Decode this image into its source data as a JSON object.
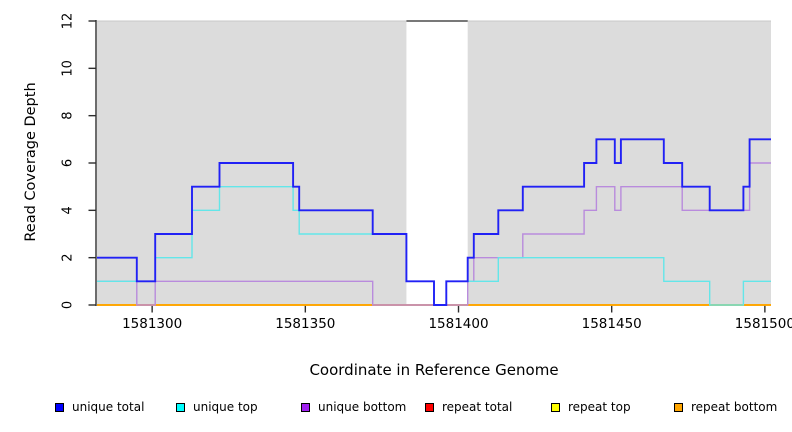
{
  "chart_data": {
    "type": "line",
    "subtype": "step-coverage",
    "title": "",
    "xlabel": "Coordinate in Reference Genome",
    "ylabel": "Read Coverage Depth",
    "xlim": [
      1581282,
      1581502
    ],
    "ylim": [
      0,
      12
    ],
    "x_ticks": [
      1581300,
      1581350,
      1581400,
      1581450,
      1581500
    ],
    "y_ticks": [
      0,
      2,
      4,
      6,
      8,
      10,
      12
    ],
    "grid": "off",
    "legend_position": "bottom",
    "colors": {
      "plot_bg": "#dcdcdc",
      "axis": "#2e2e2e",
      "plot_bg_top_edge": "#c8c8c8"
    },
    "highlight_band": {
      "x0": 1581383,
      "x1": 1581403,
      "color": "#ffffff",
      "top_border": "#787878"
    },
    "series": [
      {
        "name": "repeat total",
        "legend_color": "#ff0000",
        "draw_color": "#ff0000",
        "stroke_width": 1.4,
        "steps": [
          [
            1581282,
            0
          ],
          [
            1581502,
            0
          ]
        ]
      },
      {
        "name": "repeat top",
        "legend_color": "#ffff00",
        "draw_color": "#ffff00",
        "stroke_width": 1.4,
        "steps": [
          [
            1581282,
            0
          ],
          [
            1581502,
            0
          ]
        ]
      },
      {
        "name": "repeat bottom",
        "legend_color": "#ffa500",
        "draw_color": "#ffa500",
        "stroke_width": 1.7,
        "steps": [
          [
            1581282,
            0
          ],
          [
            1581502,
            0
          ]
        ]
      },
      {
        "name": "unique bottom",
        "legend_color": "#a020f0",
        "draw_color": "#b98bdd",
        "stroke_width": 1.4,
        "steps": [
          [
            1581282,
            1
          ],
          [
            1581295,
            0
          ],
          [
            1581301,
            1
          ],
          [
            1581372,
            0
          ],
          [
            1581403,
            1
          ],
          [
            1581405,
            2
          ],
          [
            1581421,
            3
          ],
          [
            1581441,
            4
          ],
          [
            1581445,
            5
          ],
          [
            1581451,
            4
          ],
          [
            1581453,
            5
          ],
          [
            1581473,
            4
          ],
          [
            1581495,
            6
          ],
          [
            1581502,
            6
          ]
        ]
      },
      {
        "name": "unique top",
        "legend_color": "#00ffff",
        "draw_color": "#63e6e9",
        "stroke_width": 1.4,
        "steps": [
          [
            1581282,
            1
          ],
          [
            1581301,
            2
          ],
          [
            1581313,
            4
          ],
          [
            1581322,
            5
          ],
          [
            1581346,
            4
          ],
          [
            1581348,
            3
          ],
          [
            1581383,
            1
          ],
          [
            1581392,
            0
          ],
          [
            1581396,
            1
          ],
          [
            1581413,
            2
          ],
          [
            1581467,
            1
          ],
          [
            1581482,
            0
          ],
          [
            1581493,
            1
          ],
          [
            1581502,
            1
          ]
        ]
      },
      {
        "name": "unique total",
        "legend_color": "#0000ff",
        "draw_color": "#2121f5",
        "stroke_width": 1.9,
        "steps": [
          [
            1581282,
            2
          ],
          [
            1581295,
            1
          ],
          [
            1581301,
            3
          ],
          [
            1581313,
            5
          ],
          [
            1581322,
            6
          ],
          [
            1581346,
            5
          ],
          [
            1581348,
            4
          ],
          [
            1581372,
            3
          ],
          [
            1581383,
            1
          ],
          [
            1581392,
            0
          ],
          [
            1581396,
            1
          ],
          [
            1581403,
            2
          ],
          [
            1581405,
            3
          ],
          [
            1581413,
            4
          ],
          [
            1581421,
            5
          ],
          [
            1581441,
            6
          ],
          [
            1581445,
            7
          ],
          [
            1581451,
            6
          ],
          [
            1581453,
            7
          ],
          [
            1581467,
            6
          ],
          [
            1581473,
            5
          ],
          [
            1581482,
            4
          ],
          [
            1581493,
            5
          ],
          [
            1581495,
            7
          ],
          [
            1581502,
            7
          ]
        ]
      }
    ],
    "legend": [
      {
        "label": "unique total",
        "color": "#0000ff"
      },
      {
        "label": "unique top",
        "color": "#00ffff"
      },
      {
        "label": "unique bottom",
        "color": "#a020f0"
      },
      {
        "label": "repeat total",
        "color": "#ff0000"
      },
      {
        "label": "repeat top",
        "color": "#ffff00"
      },
      {
        "label": "repeat bottom",
        "color": "#ffa500"
      }
    ]
  }
}
